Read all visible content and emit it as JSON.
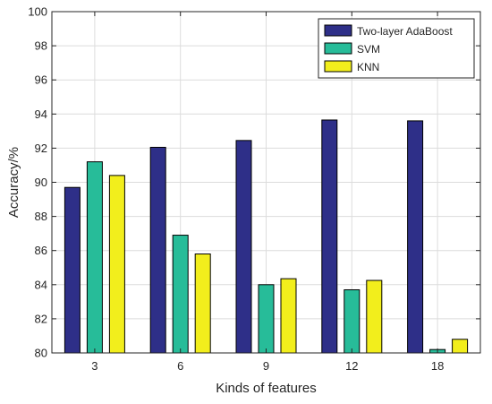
{
  "chart_data": {
    "type": "bar",
    "title": "",
    "xlabel": "Kinds of features",
    "ylabel": "Accuracy/%",
    "categories": [
      "3",
      "6",
      "9",
      "12",
      "18"
    ],
    "ylim": [
      80,
      100
    ],
    "yticks": [
      80,
      82,
      84,
      86,
      88,
      90,
      92,
      94,
      96,
      98,
      100
    ],
    "grid": true,
    "legend_position": "top-right",
    "series": [
      {
        "name": "Two-layer AdaBoost",
        "color": "#2e2f88",
        "values": [
          89.7,
          92.05,
          92.45,
          93.65,
          93.6
        ]
      },
      {
        "name": "SVM",
        "color": "#27bc99",
        "values": [
          91.2,
          86.9,
          84.0,
          83.7,
          80.2
        ]
      },
      {
        "name": "KNN",
        "color": "#f2ee1c",
        "values": [
          90.4,
          85.8,
          84.35,
          84.25,
          80.8
        ]
      }
    ]
  }
}
